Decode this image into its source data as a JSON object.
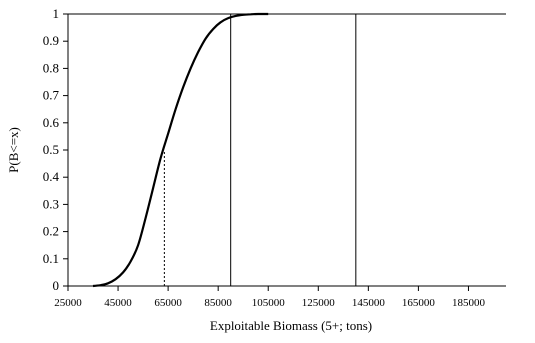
{
  "chart_data": {
    "type": "line",
    "title": "",
    "xlabel": "Exploitable Biomass (5+; tons)",
    "ylabel": "P(B<=x)",
    "xlim": [
      25000,
      200000
    ],
    "ylim": [
      0,
      1
    ],
    "x_ticks": [
      25000,
      45000,
      65000,
      85000,
      105000,
      125000,
      145000,
      165000,
      185000
    ],
    "y_ticks": [
      0,
      0.1,
      0.2,
      0.3,
      0.4,
      0.5,
      0.6,
      0.7,
      0.8,
      0.9,
      1
    ],
    "x_tick_labels": [
      "25000",
      "45000",
      "65000",
      "85000",
      "105000",
      "125000",
      "145000",
      "165000",
      "185000"
    ],
    "y_tick_labels": [
      "0",
      "0.1",
      "0.2",
      "0.3",
      "0.4",
      "0.5",
      "0.6",
      "0.7",
      "0.8",
      "0.9",
      "1"
    ],
    "grid": false,
    "legend": "none",
    "series": [
      {
        "x": [
          35000,
          38000,
          41000,
          44000,
          47000,
          50000,
          53000,
          56000,
          59000,
          62000,
          65000,
          68000,
          71000,
          74000,
          77000,
          80000,
          83000,
          86000,
          89000,
          92000,
          95000,
          98000,
          101000,
          105000
        ],
        "y": [
          0,
          0.003,
          0.01,
          0.025,
          0.05,
          0.09,
          0.15,
          0.25,
          0.36,
          0.47,
          0.56,
          0.65,
          0.73,
          0.8,
          0.86,
          0.91,
          0.945,
          0.97,
          0.985,
          0.993,
          0.997,
          0.999,
          1,
          1
        ]
      }
    ],
    "reference_lines": [
      {
        "x": 63500,
        "y_max": 0.5,
        "style": "dotted"
      },
      {
        "x": 90000,
        "y_max": 1,
        "style": "solid"
      },
      {
        "x": 140000,
        "y_max": 1,
        "style": "solid"
      }
    ],
    "colors": {
      "curve": "#000000",
      "axis": "#000000",
      "background": "#ffffff"
    }
  }
}
